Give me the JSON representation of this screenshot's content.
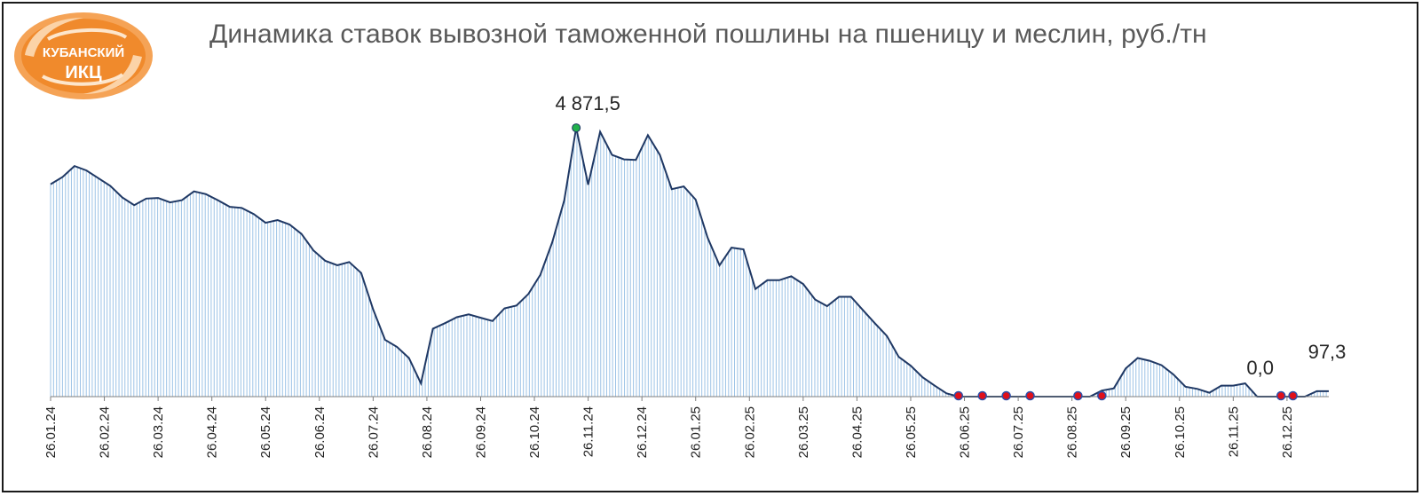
{
  "logo": {
    "line1": "КУБАНСКИЙ",
    "line2": "ИКЦ",
    "color": "#f0892b"
  },
  "chart_data": {
    "type": "area",
    "title": "Динамика ставок вывозной таможенной пошлины на пшеницу и меслин, руб./тн",
    "xlabel": "",
    "ylabel": "",
    "ylim": [
      0,
      5500
    ],
    "grid": false,
    "legend": "none",
    "colors": {
      "line": "#1f3864",
      "fill": "#9dc3e6",
      "max_marker": "#22b14c",
      "zero_marker": "#e0101a",
      "zero_marker_edge": "#2e4fa8"
    },
    "x_tick_labels": [
      "26.01.24",
      "26.02.24",
      "26.03.24",
      "26.04.24",
      "26.05.24",
      "26.06.24",
      "26.07.24",
      "26.08.24",
      "26.09.24",
      "26.10.24",
      "26.11.24",
      "26.12.24",
      "26.01.25",
      "26.02.25",
      "26.03.25",
      "26.04.25",
      "26.05.25",
      "26.06.25",
      "26.07.25",
      "26.08.25",
      "26.09.25",
      "26.10.25",
      "26.11.25",
      "26.12.25"
    ],
    "points_per_period": 4.5,
    "values": [
      3850,
      3980,
      4180,
      4100,
      3960,
      3820,
      3610,
      3470,
      3590,
      3600,
      3520,
      3560,
      3720,
      3670,
      3560,
      3440,
      3420,
      3310,
      3150,
      3200,
      3120,
      2950,
      2650,
      2460,
      2380,
      2440,
      2240,
      1580,
      1030,
      900,
      700,
      240,
      1230,
      1330,
      1440,
      1490,
      1430,
      1370,
      1600,
      1650,
      1860,
      2210,
      2800,
      3560,
      4871.5,
      3840,
      4800,
      4380,
      4300,
      4290,
      4740,
      4380,
      3760,
      3810,
      3570,
      2880,
      2380,
      2700,
      2670,
      1950,
      2110,
      2110,
      2180,
      2040,
      1760,
      1640,
      1810,
      1810,
      1570,
      1330,
      1100,
      720,
      560,
      350,
      200,
      60,
      0,
      0,
      0,
      0,
      0,
      0,
      0,
      0,
      0,
      0,
      0,
      0,
      110,
      150,
      510,
      700,
      650,
      570,
      400,
      180,
      140,
      70,
      200,
      200,
      240,
      0,
      0,
      0,
      0,
      0,
      97.3,
      97.3
    ],
    "data_labels": [
      {
        "index": 44,
        "text": "4 871,5",
        "kind": "max"
      },
      {
        "index": 102,
        "text": "0,0",
        "kind": "zero"
      },
      {
        "index": 107,
        "text": "97,3",
        "kind": "last"
      }
    ],
    "zero_markers": [
      76,
      78,
      80,
      82,
      86,
      88,
      103,
      104
    ]
  }
}
